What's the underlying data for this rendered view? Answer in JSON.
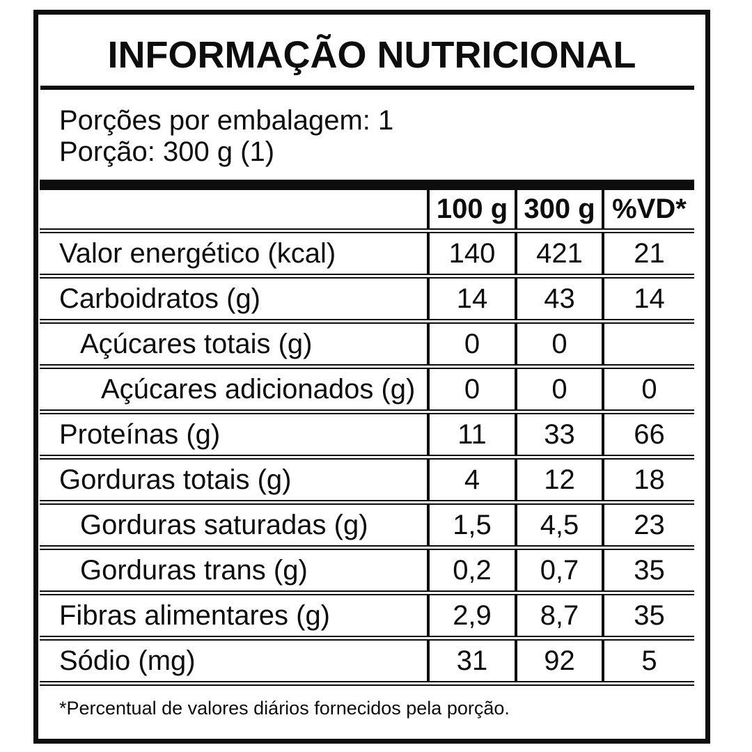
{
  "label": {
    "title": "INFORMAÇÃO NUTRICIONAL",
    "servings_line": "Porções por embalagem: 1",
    "portion_line": "Porção: 300 g (1)",
    "footnote": "*Percentual de valores diários fornecidos pela porção.",
    "colors": {
      "ink": "#0d0d0d",
      "background": "#ffffff"
    }
  },
  "table": {
    "headers": [
      "100 g",
      "300 g",
      "%VD*"
    ],
    "rows": [
      {
        "label": "Valor energético (kcal)",
        "indent": 0,
        "per100g": "140",
        "per300g": "421",
        "vd": "21"
      },
      {
        "label": "Carboidratos (g)",
        "indent": 0,
        "per100g": "14",
        "per300g": "43",
        "vd": "14"
      },
      {
        "label": "Açúcares totais (g)",
        "indent": 1,
        "per100g": "0",
        "per300g": "0",
        "vd": ""
      },
      {
        "label": "Açúcares adicionados (g)",
        "indent": 2,
        "per100g": "0",
        "per300g": "0",
        "vd": "0"
      },
      {
        "label": "Proteínas (g)",
        "indent": 0,
        "per100g": "11",
        "per300g": "33",
        "vd": "66"
      },
      {
        "label": "Gorduras totais (g)",
        "indent": 0,
        "per100g": "4",
        "per300g": "12",
        "vd": "18"
      },
      {
        "label": "Gorduras saturadas (g)",
        "indent": 1,
        "per100g": "1,5",
        "per300g": "4,5",
        "vd": "23"
      },
      {
        "label": "Gorduras trans (g)",
        "indent": 1,
        "per100g": "0,2",
        "per300g": "0,7",
        "vd": "35"
      },
      {
        "label": "Fibras alimentares (g)",
        "indent": 0,
        "per100g": "2,9",
        "per300g": "8,7",
        "vd": "35"
      },
      {
        "label": "Sódio (mg)",
        "indent": 0,
        "per100g": "31",
        "per300g": "92",
        "vd": "5"
      }
    ]
  }
}
